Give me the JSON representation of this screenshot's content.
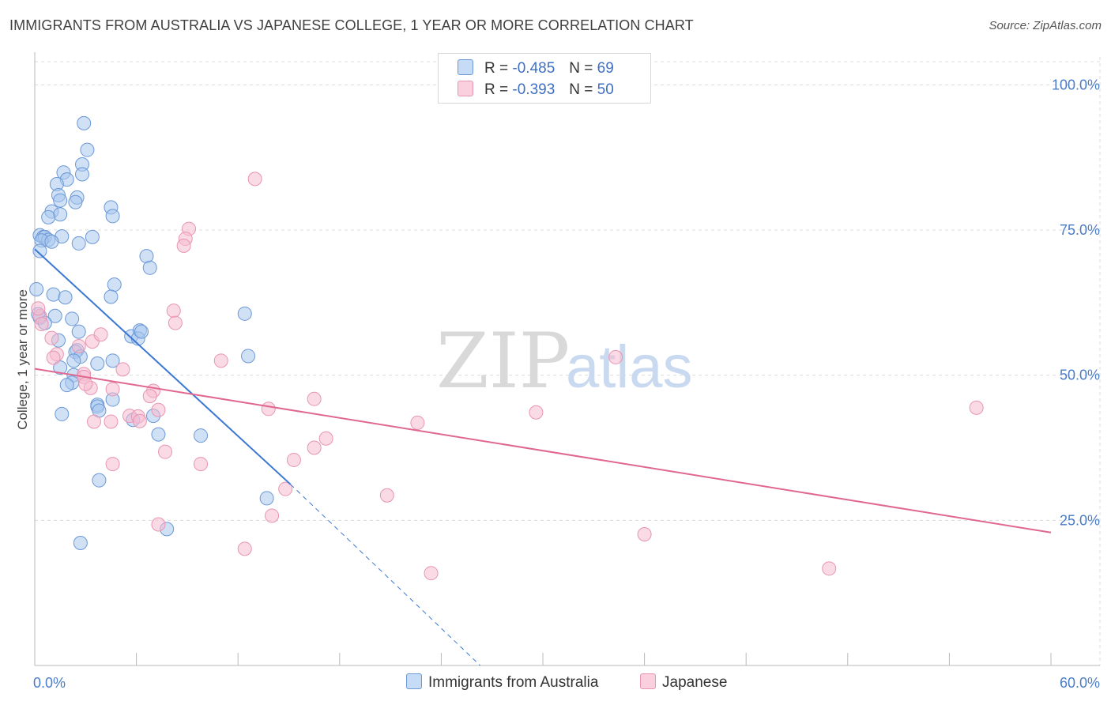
{
  "header": {
    "title": "IMMIGRANTS FROM AUSTRALIA VS JAPANESE COLLEGE, 1 YEAR OR MORE CORRELATION CHART",
    "source": "Source: ZipAtlas.com"
  },
  "watermark": {
    "zip": "ZIP",
    "atlas": "atlas"
  },
  "legend": {
    "r_label": "R =",
    "n_label": "N =",
    "series": [
      {
        "name": "Immigrants from Australia",
        "r": "-0.485",
        "n": "69"
      },
      {
        "name": "Japanese",
        "r": "-0.393",
        "n": "50"
      }
    ]
  },
  "colors": {
    "blue_fill": "#a9c8ee",
    "blue_stroke": "#6b98d6",
    "blue_line": "#3a78d4",
    "pink_fill": "#f6bcd0",
    "pink_stroke": "#e895b2",
    "pink_line": "#e0688f",
    "grid": "#dcdcdc",
    "tick_text": "#4a7cc7"
  },
  "chart_data": {
    "type": "scatter",
    "title": "IMMIGRANTS FROM AUSTRALIA VS JAPANESE COLLEGE, 1 YEAR OR MORE CORRELATION CHART",
    "xlabel": "",
    "ylabel": "College, 1 year or more",
    "xlim": [
      0,
      60
    ],
    "ylim": [
      0,
      104
    ],
    "x_tick_labels": [
      "0.0%",
      "60.0%"
    ],
    "y_ticks": [
      25,
      50,
      75,
      100
    ],
    "y_tick_labels": [
      "25.0%",
      "50.0%",
      "75.0%",
      "100.0%"
    ],
    "grid": true,
    "series": [
      {
        "name": "Immigrants from Australia",
        "r": -0.485,
        "n": 69,
        "points": [
          [
            2.9,
            93.4
          ],
          [
            3.1,
            88.8
          ],
          [
            2.8,
            86.3
          ],
          [
            1.7,
            84.9
          ],
          [
            2.8,
            84.6
          ],
          [
            1.9,
            83.7
          ],
          [
            1.3,
            82.9
          ],
          [
            1.4,
            81.0
          ],
          [
            2.5,
            80.6
          ],
          [
            1.5,
            80.1
          ],
          [
            2.4,
            79.8
          ],
          [
            4.5,
            78.9
          ],
          [
            1.0,
            78.2
          ],
          [
            1.5,
            77.7
          ],
          [
            4.6,
            77.4
          ],
          [
            0.8,
            77.2
          ],
          [
            0.3,
            74.1
          ],
          [
            0.5,
            73.8
          ],
          [
            0.6,
            73.8
          ],
          [
            1.6,
            73.9
          ],
          [
            3.4,
            73.8
          ],
          [
            0.8,
            73.3
          ],
          [
            0.4,
            73.2
          ],
          [
            1.0,
            73.0
          ],
          [
            2.6,
            72.7
          ],
          [
            0.3,
            71.4
          ],
          [
            6.6,
            70.5
          ],
          [
            6.8,
            68.5
          ],
          [
            0.1,
            64.8
          ],
          [
            4.7,
            65.6
          ],
          [
            1.1,
            63.9
          ],
          [
            1.8,
            63.4
          ],
          [
            4.5,
            63.5
          ],
          [
            12.4,
            60.6
          ],
          [
            1.2,
            60.2
          ],
          [
            2.2,
            59.7
          ],
          [
            0.3,
            59.9
          ],
          [
            2.6,
            57.5
          ],
          [
            5.7,
            56.7
          ],
          [
            6.2,
            57.7
          ],
          [
            6.1,
            56.3
          ],
          [
            6.3,
            57.5
          ],
          [
            2.5,
            54.3
          ],
          [
            2.4,
            54.0
          ],
          [
            2.7,
            53.2
          ],
          [
            12.6,
            53.3
          ],
          [
            2.3,
            52.5
          ],
          [
            4.6,
            52.5
          ],
          [
            3.7,
            52.0
          ],
          [
            1.5,
            51.3
          ],
          [
            2.3,
            50.0
          ],
          [
            2.2,
            48.7
          ],
          [
            1.9,
            48.3
          ],
          [
            4.6,
            45.8
          ],
          [
            3.7,
            44.9
          ],
          [
            3.7,
            44.6
          ],
          [
            3.8,
            43.9
          ],
          [
            1.6,
            43.3
          ],
          [
            5.8,
            42.3
          ],
          [
            7.0,
            43.0
          ],
          [
            7.3,
            39.8
          ],
          [
            9.8,
            39.6
          ],
          [
            3.8,
            31.9
          ],
          [
            13.7,
            28.8
          ],
          [
            7.8,
            23.5
          ],
          [
            2.7,
            21.1
          ],
          [
            0.2,
            60.5
          ],
          [
            0.6,
            59.0
          ],
          [
            1.4,
            56.0
          ]
        ]
      },
      {
        "name": "Japanese",
        "r": -0.393,
        "n": 50,
        "points": [
          [
            13.0,
            83.8
          ],
          [
            9.1,
            75.2
          ],
          [
            8.9,
            73.5
          ],
          [
            8.8,
            72.3
          ],
          [
            8.2,
            61.1
          ],
          [
            0.3,
            60.2
          ],
          [
            0.4,
            58.8
          ],
          [
            1.0,
            56.4
          ],
          [
            1.3,
            53.6
          ],
          [
            2.9,
            50.2
          ],
          [
            3.4,
            55.8
          ],
          [
            3.9,
            57.0
          ],
          [
            5.2,
            51.0
          ],
          [
            11.0,
            52.5
          ],
          [
            34.3,
            53.1
          ],
          [
            2.9,
            49.7
          ],
          [
            3.3,
            47.8
          ],
          [
            4.6,
            47.6
          ],
          [
            7.0,
            47.3
          ],
          [
            6.8,
            46.4
          ],
          [
            16.5,
            45.9
          ],
          [
            13.8,
            44.2
          ],
          [
            5.6,
            43.0
          ],
          [
            6.1,
            42.9
          ],
          [
            7.3,
            44.0
          ],
          [
            3.5,
            42.0
          ],
          [
            4.5,
            42.0
          ],
          [
            6.2,
            42.1
          ],
          [
            22.6,
            41.8
          ],
          [
            29.6,
            43.6
          ],
          [
            55.6,
            44.4
          ],
          [
            17.2,
            39.1
          ],
          [
            16.5,
            37.5
          ],
          [
            7.7,
            36.8
          ],
          [
            4.6,
            34.7
          ],
          [
            9.8,
            34.7
          ],
          [
            15.3,
            35.4
          ],
          [
            14.8,
            30.4
          ],
          [
            20.8,
            29.3
          ],
          [
            14.0,
            25.8
          ],
          [
            7.3,
            24.3
          ],
          [
            12.4,
            20.1
          ],
          [
            36.0,
            22.6
          ],
          [
            23.4,
            15.9
          ],
          [
            46.9,
            16.7
          ],
          [
            0.2,
            61.5
          ],
          [
            2.6,
            55.0
          ],
          [
            1.1,
            53.0
          ],
          [
            8.3,
            59.0
          ],
          [
            3.0,
            48.5
          ]
        ]
      }
    ],
    "trend_lines": [
      {
        "series": "Immigrants from Australia",
        "x0": 0.0,
        "y0": 71.7,
        "x1": 15.1,
        "y1": 31.2,
        "dashed_to_x": 26.3,
        "dashed_to_y": 0.0
      },
      {
        "series": "Japanese",
        "x0": 0.0,
        "y0": 51.1,
        "x1": 60.0,
        "y1": 22.9
      }
    ]
  }
}
